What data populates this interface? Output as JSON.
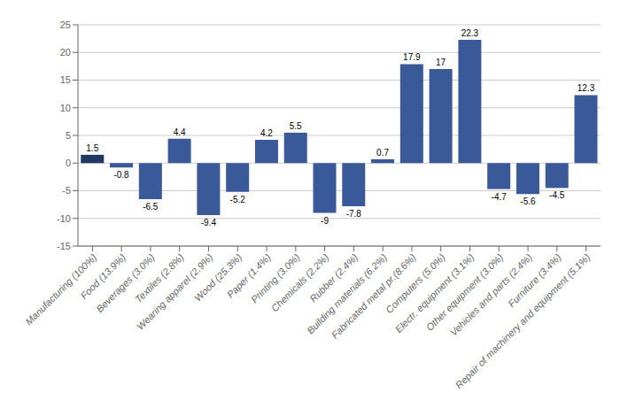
{
  "chart_data": {
    "type": "bar",
    "categories": [
      "Manufacturing (100%)",
      "Food (13.9%)",
      "Beverages (3.0%)",
      "Textiles (2.8%)",
      "Wearing apparel (2.9%)",
      "Wood (25.3%)",
      "Paper (1.4%)",
      "Printing (3.0%)",
      "Chemicals (2.2%)",
      "Rubber (2.4%)",
      "Building materials (6.2%)",
      "Fabricated metal pr.(8.6%)",
      "Computers (5.0%)",
      "Electr. equipment (3.1%)",
      "Other equipment (3.0%)",
      "Vehicles and parts (2.4%)",
      "Furniture (3.4%)",
      "Repair of machinery and equipment (5.1%)"
    ],
    "values": [
      1.5,
      -0.8,
      -6.5,
      4.4,
      -9.4,
      -5.2,
      4.2,
      5.5,
      -9.0,
      -7.8,
      0.7,
      17.9,
      17.0,
      22.3,
      -4.7,
      -5.6,
      -4.5,
      12.3
    ],
    "value_labels": [
      "1.5",
      "-0.8",
      "-6.5",
      "4.4",
      "-9.4",
      "-5.2",
      "4.2",
      "5.5",
      "-9",
      "-7.8",
      "0.7",
      "17.9",
      "17",
      "22.3",
      "-4.7",
      "-5.6",
      "-4.5",
      "12.3"
    ],
    "colors": [
      "#1F3864",
      "#3A5998",
      "#3A5998",
      "#3A5998",
      "#3A5998",
      "#3A5998",
      "#3A5998",
      "#3A5998",
      "#3A5998",
      "#3A5998",
      "#3A5998",
      "#3A5998",
      "#3A5998",
      "#3A5998",
      "#3A5998",
      "#3A5998",
      "#3A5998",
      "#3A5998"
    ],
    "ylim": [
      -15,
      25
    ],
    "yticks": [
      -15,
      -10,
      -5,
      0,
      5,
      10,
      15,
      20,
      25
    ],
    "grid": true,
    "data_labels": true
  }
}
